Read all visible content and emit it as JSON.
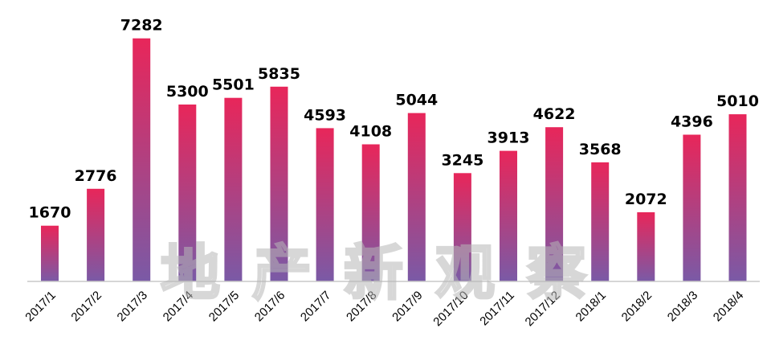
{
  "chart_data": {
    "type": "bar",
    "categories": [
      "2017/1",
      "2017/2",
      "2017/3",
      "2017/4",
      "2017/5",
      "2017/6",
      "2017/7",
      "2017/8",
      "2017/9",
      "2017/10",
      "2017/11",
      "2017/12",
      "2018/1",
      "2018/2",
      "2018/3",
      "2018/4"
    ],
    "values": [
      1670,
      2776,
      7282,
      5300,
      5501,
      5835,
      4593,
      4108,
      5044,
      3245,
      3913,
      4622,
      3568,
      2072,
      4396,
      5010
    ],
    "title": "",
    "xlabel": "",
    "ylabel": "",
    "ylim": [
      0,
      7300
    ],
    "grid": false,
    "legend": "none",
    "data_labels": true,
    "bar_gradient": {
      "top": "#e8265a",
      "bottom": "#7a5aa6"
    },
    "watermark": "地产新观察"
  },
  "colors": {
    "axis": "#c8c8c8",
    "label": "#000000"
  }
}
